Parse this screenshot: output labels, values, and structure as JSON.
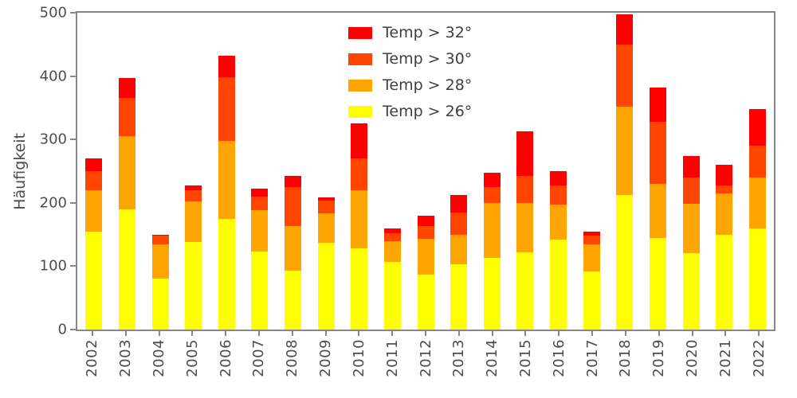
{
  "chart_data": {
    "type": "bar",
    "stacked": true,
    "title": "",
    "xlabel": "",
    "ylabel": "Häufigkeit",
    "ylim": [
      0,
      500
    ],
    "yticks": [
      0,
      100,
      200,
      300,
      400,
      500
    ],
    "grid": false,
    "legend_position": "upper center, inside plot, no frame",
    "legend_display_order": [
      "Temp > 32°",
      "Temp > 30°",
      "Temp > 28°",
      "Temp > 26°"
    ],
    "categories": [
      "2002",
      "2003",
      "2004",
      "2005",
      "2006",
      "2007",
      "2008",
      "2009",
      "2010",
      "2011",
      "2012",
      "2013",
      "2014",
      "2015",
      "2016",
      "2017",
      "2018",
      "2019",
      "2020",
      "2021",
      "2022"
    ],
    "series": [
      {
        "name": "Temp > 26°",
        "color": "#ffff00",
        "values": [
          155,
          190,
          80,
          138,
          175,
          123,
          93,
          137,
          128,
          107,
          87,
          103,
          113,
          122,
          142,
          92,
          212,
          145,
          120,
          150,
          160
        ]
      },
      {
        "name": "Temp > 28°",
        "color": "#ffa500",
        "values": [
          65,
          115,
          55,
          64,
          123,
          65,
          70,
          46,
          92,
          33,
          56,
          47,
          87,
          78,
          55,
          43,
          140,
          85,
          78,
          65,
          80
        ]
      },
      {
        "name": "Temp > 30°",
        "color": "#ff4500",
        "values": [
          30,
          60,
          13,
          18,
          100,
          22,
          62,
          20,
          50,
          12,
          20,
          35,
          25,
          43,
          31,
          13,
          98,
          98,
          42,
          13,
          50
        ]
      },
      {
        "name": "Temp > 32°",
        "color": "#ff0000",
        "values": [
          20,
          32,
          2,
          7,
          34,
          12,
          18,
          5,
          55,
          8,
          17,
          27,
          22,
          70,
          22,
          6,
          47,
          54,
          34,
          32,
          58
        ]
      }
    ]
  },
  "colors": {
    "spine": "#878787",
    "tick_text": "#4d4d4d",
    "legend_text": "#3f3f3f",
    "background": "#ffffff"
  }
}
